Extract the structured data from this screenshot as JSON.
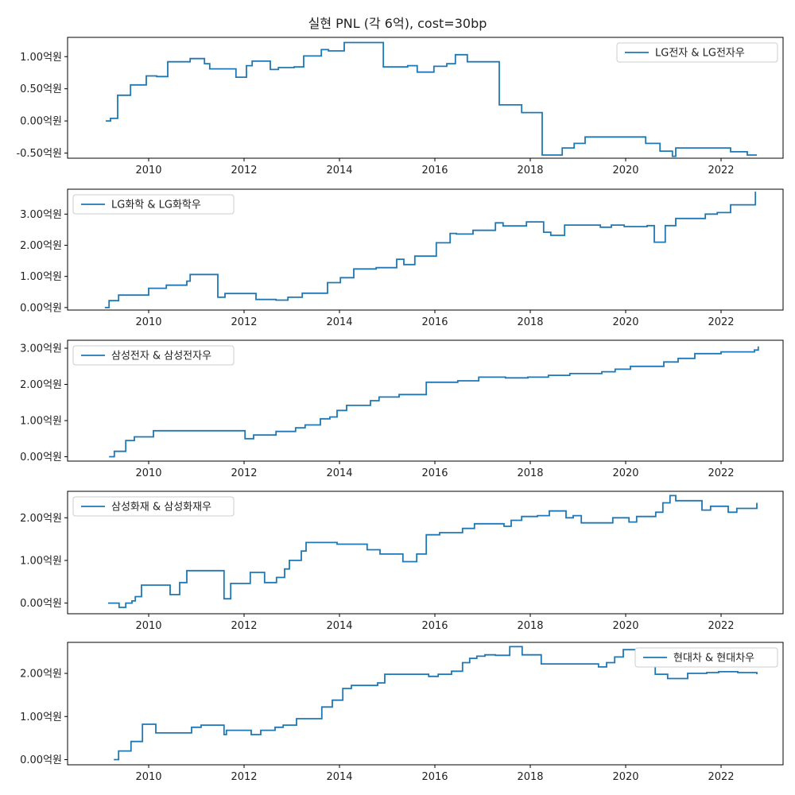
{
  "title": "실현 PNL (각 6억), cost=30bp",
  "colors": {
    "line": "#1f77b4",
    "axis": "#000000",
    "legend_border": "#cccccc"
  },
  "chart_data": [
    {
      "type": "line",
      "legend_loc": "top-right",
      "xlim": [
        2008.3,
        2023.3
      ],
      "ylim": [
        -0.58,
        1.3
      ],
      "yticks": [
        -0.5,
        0.0,
        0.5,
        1.0
      ],
      "ytick_labels": [
        "-0.50억원",
        "0.00억원",
        "0.50억원",
        "1.00억원"
      ],
      "xticks": [
        2010,
        2012,
        2014,
        2016,
        2018,
        2020,
        2022
      ],
      "xtick_labels": [
        "2010",
        "2012",
        "2014",
        "2016",
        "2018",
        "2020",
        "2022"
      ],
      "series": [
        {
          "name": "LG전자 & LG전자우",
          "x": [
            2009.1,
            2009.2,
            2009.35,
            2009.62,
            2009.95,
            2010.17,
            2010.4,
            2010.87,
            2011.17,
            2011.28,
            2011.83,
            2012.05,
            2012.17,
            2012.55,
            2012.72,
            2013.05,
            2013.25,
            2013.62,
            2013.77,
            2014.1,
            2014.92,
            2015.43,
            2015.63,
            2015.98,
            2016.25,
            2016.43,
            2016.68,
            2017.35,
            2017.82,
            2018.25,
            2018.67,
            2018.92,
            2019.15,
            2020.42,
            2020.72,
            2020.98,
            2021.05,
            2022.2,
            2022.55,
            2022.75
          ],
          "y": [
            0.0,
            0.04,
            0.4,
            0.56,
            0.7,
            0.69,
            0.92,
            0.97,
            0.89,
            0.81,
            0.68,
            0.86,
            0.93,
            0.8,
            0.83,
            0.84,
            1.01,
            1.11,
            1.09,
            1.22,
            0.84,
            0.86,
            0.76,
            0.85,
            0.89,
            1.03,
            0.92,
            0.25,
            0.13,
            -0.53,
            -0.42,
            -0.35,
            -0.25,
            -0.35,
            -0.47,
            -0.55,
            -0.42,
            -0.48,
            -0.53,
            -0.53
          ]
        }
      ]
    },
    {
      "type": "line",
      "legend_loc": "top-left",
      "xlim": [
        2008.3,
        2023.3
      ],
      "ylim": [
        -0.08,
        3.8
      ],
      "yticks": [
        0.0,
        1.0,
        2.0,
        3.0
      ],
      "ytick_labels": [
        "0.00억원",
        "1.00억원",
        "2.00억원",
        "3.00억원"
      ],
      "xticks": [
        2010,
        2012,
        2014,
        2016,
        2018,
        2020,
        2022
      ],
      "xtick_labels": [
        "2010",
        "2012",
        "2014",
        "2016",
        "2018",
        "2020",
        "2022"
      ],
      "series": [
        {
          "name": "LG화학 & LG화학우",
          "x": [
            2009.08,
            2009.17,
            2009.37,
            2010.0,
            2010.37,
            2010.8,
            2010.87,
            2011.45,
            2011.6,
            2012.25,
            2012.67,
            2012.92,
            2013.22,
            2013.75,
            2014.02,
            2014.3,
            2014.77,
            2015.2,
            2015.35,
            2015.58,
            2016.03,
            2016.32,
            2016.45,
            2016.8,
            2017.27,
            2017.43,
            2017.92,
            2018.28,
            2018.43,
            2018.72,
            2019.47,
            2019.7,
            2019.97,
            2020.45,
            2020.6,
            2020.83,
            2021.05,
            2021.67,
            2021.92,
            2022.2,
            2022.72
          ],
          "y": [
            0.0,
            0.22,
            0.4,
            0.62,
            0.72,
            0.85,
            1.06,
            0.33,
            0.45,
            0.26,
            0.24,
            0.33,
            0.46,
            0.8,
            0.96,
            1.24,
            1.28,
            1.55,
            1.38,
            1.65,
            2.08,
            2.38,
            2.36,
            2.48,
            2.72,
            2.62,
            2.75,
            2.42,
            2.32,
            2.65,
            2.58,
            2.65,
            2.6,
            2.63,
            2.1,
            2.63,
            2.86,
            3.0,
            3.05,
            3.3,
            3.72
          ]
        }
      ]
    },
    {
      "type": "line",
      "legend_loc": "top-left",
      "xlim": [
        2008.3,
        2023.3
      ],
      "ylim": [
        -0.12,
        3.22
      ],
      "yticks": [
        0.0,
        1.0,
        2.0,
        3.0
      ],
      "ytick_labels": [
        "0.00억원",
        "1.00억원",
        "2.00억원",
        "3.00억원"
      ],
      "xticks": [
        2010,
        2012,
        2014,
        2016,
        2018,
        2020,
        2022
      ],
      "xtick_labels": [
        "2010",
        "2012",
        "2014",
        "2016",
        "2018",
        "2020",
        "2022"
      ],
      "series": [
        {
          "name": "삼성전자 & 삼성전자우",
          "x": [
            2009.17,
            2009.28,
            2009.52,
            2009.7,
            2010.1,
            2012.02,
            2012.2,
            2012.67,
            2013.08,
            2013.28,
            2013.6,
            2013.8,
            2013.95,
            2014.15,
            2014.65,
            2014.83,
            2015.25,
            2015.82,
            2016.48,
            2016.92,
            2017.48,
            2017.95,
            2018.38,
            2018.83,
            2019.5,
            2019.78,
            2020.1,
            2020.8,
            2021.1,
            2021.45,
            2022.0,
            2022.7,
            2022.78
          ],
          "y": [
            0.0,
            0.15,
            0.45,
            0.55,
            0.72,
            0.5,
            0.6,
            0.7,
            0.8,
            0.88,
            1.05,
            1.1,
            1.28,
            1.42,
            1.55,
            1.65,
            1.72,
            2.06,
            2.1,
            2.2,
            2.18,
            2.2,
            2.25,
            2.3,
            2.35,
            2.42,
            2.5,
            2.62,
            2.72,
            2.85,
            2.9,
            2.95,
            3.05
          ]
        }
      ]
    },
    {
      "type": "line",
      "legend_loc": "top-left",
      "xlim": [
        2008.3,
        2023.3
      ],
      "ylim": [
        -0.25,
        2.62
      ],
      "yticks": [
        0.0,
        1.0,
        2.0
      ],
      "ytick_labels": [
        "0.00억원",
        "1.00억원",
        "2.00억원"
      ],
      "xticks": [
        2010,
        2012,
        2014,
        2016,
        2018,
        2020,
        2022
      ],
      "xtick_labels": [
        "2010",
        "2012",
        "2014",
        "2016",
        "2018",
        "2020",
        "2022"
      ],
      "series": [
        {
          "name": "삼성화재 & 삼성화재우",
          "x": [
            2009.15,
            2009.38,
            2009.52,
            2009.65,
            2009.72,
            2009.85,
            2010.45,
            2010.65,
            2010.8,
            2011.58,
            2011.72,
            2012.13,
            2012.43,
            2012.68,
            2012.85,
            2012.95,
            2013.2,
            2013.3,
            2013.95,
            2014.58,
            2014.85,
            2015.33,
            2015.62,
            2015.82,
            2016.1,
            2016.58,
            2016.83,
            2017.45,
            2017.6,
            2017.82,
            2018.15,
            2018.4,
            2018.75,
            2018.9,
            2019.07,
            2019.73,
            2020.07,
            2020.23,
            2020.63,
            2020.78,
            2020.93,
            2021.05,
            2021.6,
            2021.78,
            2022.15,
            2022.33,
            2022.75
          ],
          "y": [
            0.0,
            -0.1,
            0.0,
            0.05,
            0.15,
            0.42,
            0.2,
            0.48,
            0.76,
            0.1,
            0.46,
            0.72,
            0.48,
            0.6,
            0.8,
            1.0,
            1.22,
            1.42,
            1.38,
            1.25,
            1.15,
            0.97,
            1.15,
            1.6,
            1.65,
            1.75,
            1.86,
            1.8,
            1.94,
            2.03,
            2.05,
            2.16,
            2.0,
            2.05,
            1.88,
            2.0,
            1.9,
            2.03,
            2.13,
            2.35,
            2.52,
            2.4,
            2.18,
            2.27,
            2.13,
            2.22,
            2.35
          ]
        }
      ]
    },
    {
      "type": "line",
      "legend_loc": "top-right",
      "xlim": [
        2008.3,
        2023.3
      ],
      "ylim": [
        -0.12,
        2.72
      ],
      "yticks": [
        0.0,
        1.0,
        2.0
      ],
      "ytick_labels": [
        "0.00억원",
        "1.00억원",
        "2.00억원"
      ],
      "xticks": [
        2010,
        2012,
        2014,
        2016,
        2018,
        2020,
        2022
      ],
      "xtick_labels": [
        "2010",
        "2012",
        "2014",
        "2016",
        "2018",
        "2020",
        "2022"
      ],
      "series": [
        {
          "name": "현대차 & 현대차우",
          "x": [
            2009.27,
            2009.37,
            2009.63,
            2009.87,
            2010.15,
            2010.9,
            2011.1,
            2011.58,
            2011.63,
            2012.15,
            2012.35,
            2012.65,
            2012.82,
            2013.1,
            2013.63,
            2013.85,
            2014.07,
            2014.25,
            2014.8,
            2014.95,
            2015.87,
            2016.07,
            2016.35,
            2016.58,
            2016.73,
            2016.88,
            2017.05,
            2017.27,
            2017.57,
            2017.83,
            2018.23,
            2019.43,
            2019.6,
            2019.77,
            2019.95,
            2020.23,
            2020.62,
            2020.88,
            2021.3,
            2021.7,
            2021.95,
            2022.35,
            2022.75
          ],
          "y": [
            0.0,
            0.2,
            0.42,
            0.82,
            0.62,
            0.75,
            0.8,
            0.58,
            0.68,
            0.58,
            0.68,
            0.75,
            0.8,
            0.95,
            1.22,
            1.38,
            1.65,
            1.72,
            1.78,
            1.98,
            1.93,
            1.98,
            2.05,
            2.25,
            2.35,
            2.4,
            2.43,
            2.42,
            2.62,
            2.43,
            2.22,
            2.15,
            2.25,
            2.38,
            2.55,
            2.5,
            1.98,
            1.88,
            2.0,
            2.02,
            2.04,
            2.02,
            1.98
          ]
        }
      ]
    }
  ]
}
